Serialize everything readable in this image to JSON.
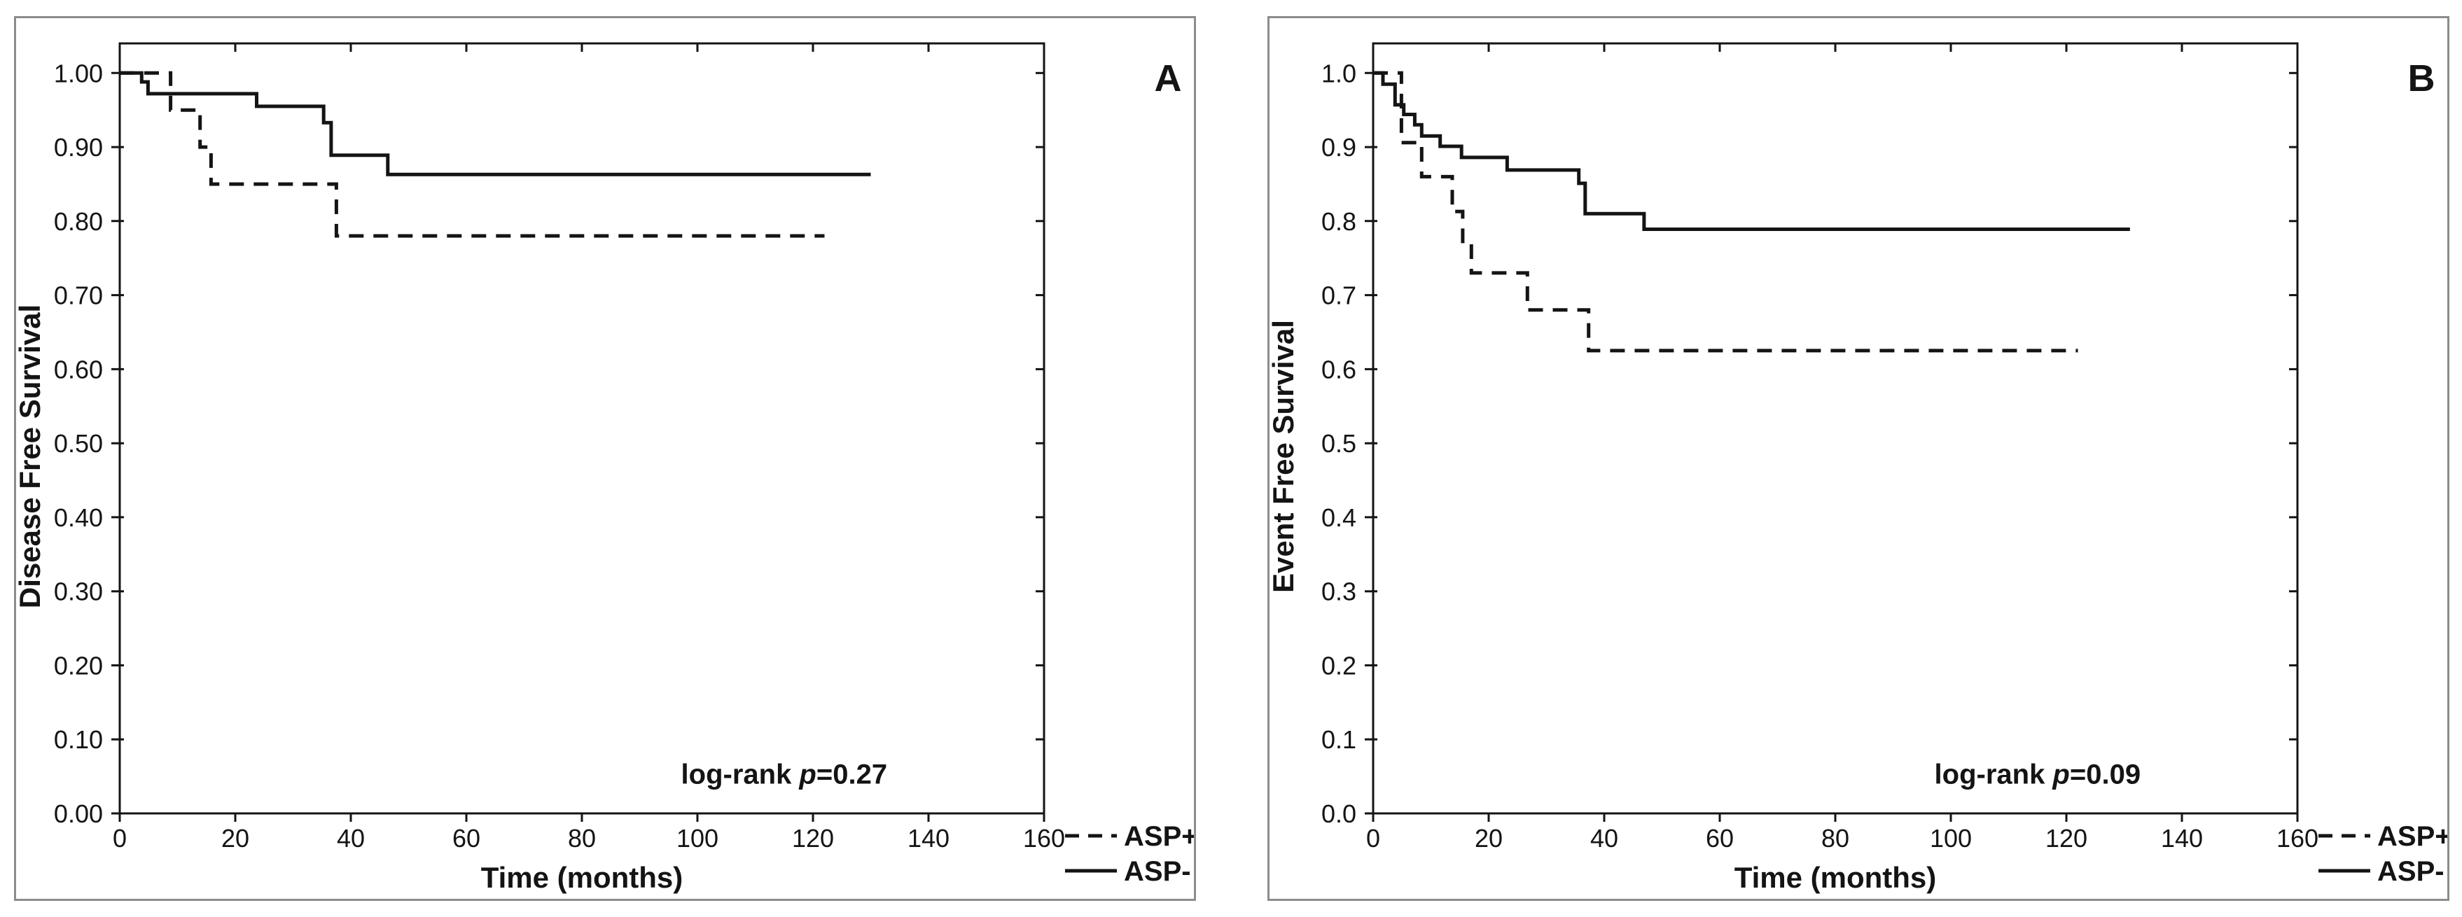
{
  "figure": {
    "background_color": "#ffffff",
    "panel_border_color": "#8c8c8c",
    "ink_color": "#141414"
  },
  "chart_data": [
    {
      "panel_label": "A",
      "type": "line",
      "subtype": "kaplan-meier-step",
      "title": "",
      "xlabel": "Time (months)",
      "ylabel": "Disease Free Survival",
      "xlim": [
        0,
        160
      ],
      "ylim": [
        0,
        1.04
      ],
      "grid": false,
      "xticks": [
        0,
        20,
        40,
        60,
        80,
        100,
        120,
        140,
        160
      ],
      "xtick_labels": [
        "0",
        "20",
        "40",
        "60",
        "80",
        "100",
        "120",
        "140",
        "160"
      ],
      "ytick_values": [
        0.0,
        0.1,
        0.2,
        0.3,
        0.4,
        0.5,
        0.6,
        0.7,
        0.8,
        0.9,
        1.0
      ],
      "ytick_labels": [
        "0.00",
        "0.10",
        "0.20",
        "0.30",
        "0.40",
        "0.50",
        "0.60",
        "0.70",
        "0.80",
        "0.90",
        "1.00"
      ],
      "annotation": {
        "text_prefix": "log-rank ",
        "italic_var": "p",
        "text_suffix": "=0.27",
        "p_value": 0.27,
        "x_months": 115,
        "y_value": 0.04
      },
      "legend_position": "outside-bottom-right",
      "legend": [
        {
          "label": "ASP+",
          "line_style": "dashed"
        },
        {
          "label": "ASP-",
          "line_style": "solid"
        }
      ],
      "series": [
        {
          "name": "ASP+",
          "line_style": "dashed",
          "steps": [
            [
              0,
              1.0
            ],
            [
              8.8,
              0.95
            ],
            [
              13.9,
              0.9
            ],
            [
              15.8,
              0.85
            ],
            [
              37.5,
              0.78
            ]
          ],
          "end_month": 122
        },
        {
          "name": "ASP-",
          "line_style": "solid",
          "steps": [
            [
              0,
              1.0
            ],
            [
              3.8,
              0.988
            ],
            [
              4.9,
              0.972
            ],
            [
              23.7,
              0.955
            ],
            [
              35.3,
              0.933
            ],
            [
              36.6,
              0.889
            ],
            [
              46.4,
              0.863
            ]
          ],
          "end_month": 130
        }
      ]
    },
    {
      "panel_label": "B",
      "type": "line",
      "subtype": "kaplan-meier-step",
      "title": "",
      "xlabel": "Time (months)",
      "ylabel": "Event Free Survival",
      "xlim": [
        0,
        160
      ],
      "ylim": [
        0,
        1.04
      ],
      "grid": false,
      "xticks": [
        0,
        20,
        40,
        60,
        80,
        100,
        120,
        140,
        160
      ],
      "xtick_labels": [
        "0",
        "20",
        "40",
        "60",
        "80",
        "100",
        "120",
        "140",
        "160"
      ],
      "ytick_values": [
        0.0,
        0.1,
        0.2,
        0.3,
        0.4,
        0.5,
        0.6,
        0.7,
        0.8,
        0.9,
        1.0
      ],
      "ytick_labels": [
        "0.0",
        "0.1",
        "0.2",
        "0.3",
        "0.4",
        "0.5",
        "0.6",
        "0.7",
        "0.8",
        "0.9",
        "1.0"
      ],
      "annotation": {
        "text_prefix": "log-rank ",
        "italic_var": "p",
        "text_suffix": "=0.09",
        "p_value": 0.09,
        "x_months": 115,
        "y_value": 0.04
      },
      "legend_position": "outside-bottom-right",
      "legend": [
        {
          "label": "ASP+",
          "line_style": "dashed"
        },
        {
          "label": "ASP-",
          "line_style": "solid"
        }
      ],
      "series": [
        {
          "name": "ASP+",
          "line_style": "dashed",
          "steps": [
            [
              0,
              1.0
            ],
            [
              4.9,
              0.906
            ],
            [
              8.4,
              0.86
            ],
            [
              13.7,
              0.813
            ],
            [
              15.5,
              0.77
            ],
            [
              17.0,
              0.73
            ],
            [
              26.7,
              0.68
            ],
            [
              37.3,
              0.625
            ]
          ],
          "end_month": 122
        },
        {
          "name": "ASP-",
          "line_style": "solid",
          "steps": [
            [
              0,
              1.0
            ],
            [
              1.7,
              0.985
            ],
            [
              3.8,
              0.957
            ],
            [
              5.3,
              0.944
            ],
            [
              7.2,
              0.93
            ],
            [
              8.4,
              0.915
            ],
            [
              11.6,
              0.901
            ],
            [
              15.3,
              0.886
            ],
            [
              23.2,
              0.869
            ],
            [
              35.6,
              0.851
            ],
            [
              36.7,
              0.81
            ],
            [
              46.9,
              0.789
            ]
          ],
          "end_month": 131
        }
      ]
    }
  ]
}
